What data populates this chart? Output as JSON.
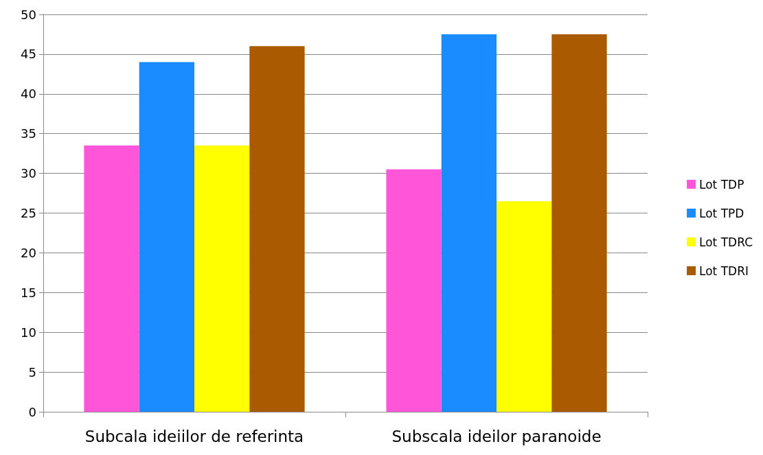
{
  "chart_data": {
    "type": "bar",
    "categories": [
      "Subcala ideiilor de referinta",
      "Subscala ideilor paranoide"
    ],
    "series": [
      {
        "name": "Lot TDP",
        "color": "#ff55d9",
        "values": [
          33.5,
          30.5
        ]
      },
      {
        "name": "Lot TPD",
        "color": "#1a8cff",
        "values": [
          44,
          47.5
        ]
      },
      {
        "name": "Lot TDRC",
        "color": "#ffff00",
        "values": [
          33.5,
          26.5
        ]
      },
      {
        "name": "Lot TDRI",
        "color": "#aa5a00",
        "values": [
          46,
          47.5
        ]
      }
    ],
    "ylim": [
      0,
      50
    ],
    "yticks": [
      0,
      5,
      10,
      15,
      20,
      25,
      30,
      35,
      40,
      45,
      50
    ],
    "grid": "y",
    "legend": "right"
  }
}
